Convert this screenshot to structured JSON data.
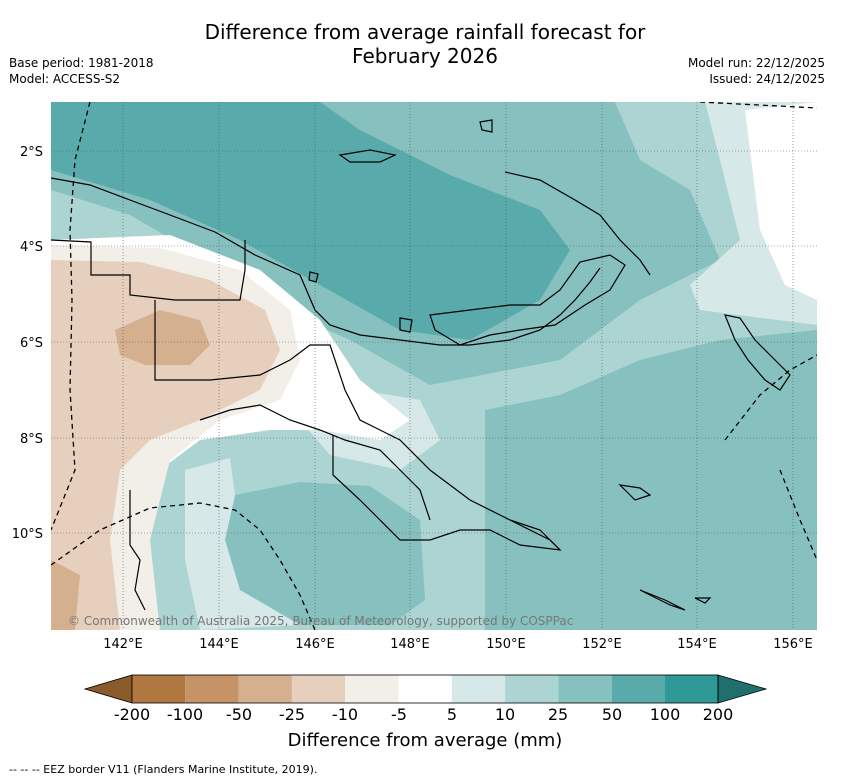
{
  "title_line1": "Difference from average rainfall forecast for",
  "title_line2": "February 2026",
  "meta_left": [
    "Base period: 1981-2018",
    "Model: ACCESS-S2"
  ],
  "meta_right": [
    "Model run: 22/12/2025",
    "Issued: 24/12/2025"
  ],
  "lat_labels": [
    "2°S",
    "4°S",
    "6°S",
    "8°S",
    "10°S"
  ],
  "lon_labels": [
    "142°E",
    "144°E",
    "146°E",
    "148°E",
    "150°E",
    "152°E",
    "154°E",
    "156°E"
  ],
  "copyright": "© Commonwealth of Australia 2025, Bureau of Meteorology, supported by COSPPac",
  "colorbar": {
    "title": "Difference from average (mm)",
    "labels": [
      "-200",
      "-100",
      "-50",
      "-25",
      "-10",
      "-5",
      "5",
      "10",
      "25",
      "50",
      "100",
      "200"
    ],
    "colors": [
      "#8b5a2b",
      "#b07840",
      "#c59366",
      "#d4b08f",
      "#e6d0bd",
      "#f2eee8",
      "#ffffff",
      "#d6e9e8",
      "#acd4d3",
      "#86c0bf",
      "#59abab",
      "#2e9997",
      "#1f6f6c"
    ]
  },
  "footnote": "-- --  -- EEZ border V11 (Flanders Marine Institute, 2019)."
}
